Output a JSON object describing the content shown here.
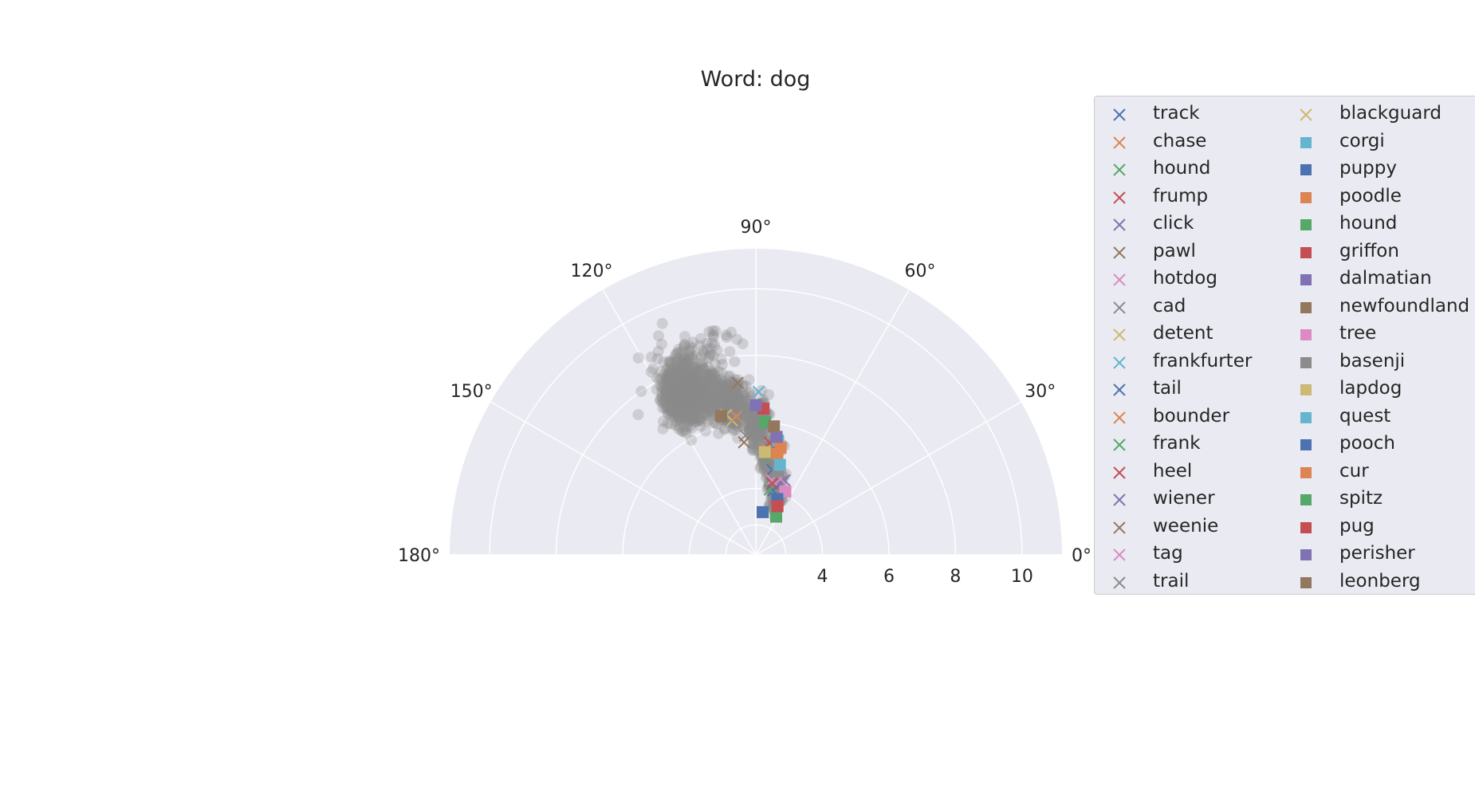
{
  "chart_data": {
    "type": "scatter",
    "projection": "polar-half",
    "title": "Word: dog",
    "theta_ticks": [
      "0°",
      "30°",
      "60°",
      "90°",
      "120°",
      "150°",
      "180°"
    ],
    "r_ticks": [
      "4",
      "6",
      "8",
      "10"
    ],
    "rlim": [
      2,
      11.2
    ],
    "thetalim_deg": [
      0,
      180
    ],
    "grid": true,
    "legend_position": "upper-right, outside plot",
    "background_cloud": {
      "color": "#8c8c8c",
      "alpha": 0.3,
      "description_points": [
        {
          "theta_deg": 108,
          "r": 8.9
        },
        {
          "theta_deg": 112,
          "r": 9.5
        },
        {
          "theta_deg": 95,
          "r": 8.5
        },
        {
          "theta_deg": 125,
          "r": 8.0
        },
        {
          "theta_deg": 130,
          "r": 7.5
        },
        {
          "theta_deg": 118,
          "r": 7.0
        },
        {
          "theta_deg": 105,
          "r": 7.2
        },
        {
          "theta_deg": 100,
          "r": 6.5
        },
        {
          "theta_deg": 92,
          "r": 6.0
        },
        {
          "theta_deg": 85,
          "r": 5.0
        },
        {
          "theta_deg": 80,
          "r": 4.3
        },
        {
          "theta_deg": 75,
          "r": 3.8
        }
      ]
    },
    "series": [
      {
        "name": "track",
        "marker": "x",
        "color": "#4c72b0",
        "theta_deg": 79,
        "r": 4.6
      },
      {
        "name": "chase",
        "marker": "x",
        "color": "#dd8452",
        "theta_deg": 84,
        "r": 5.2
      },
      {
        "name": "hound",
        "marker": "x",
        "color": "#55a868",
        "theta_deg": 82,
        "r": 5.0
      },
      {
        "name": "frump",
        "marker": "x",
        "color": "#c44e52",
        "theta_deg": 83,
        "r": 5.4
      },
      {
        "name": "click",
        "marker": "x",
        "color": "#8172b3",
        "theta_deg": 73,
        "r": 4.2
      },
      {
        "name": "pawl",
        "marker": "x",
        "color": "#937860",
        "theta_deg": 96,
        "r": 7.2
      },
      {
        "name": "hotdog",
        "marker": "x",
        "color": "#da8bc3",
        "theta_deg": 78,
        "r": 4.3
      },
      {
        "name": "cad",
        "marker": "x",
        "color": "#8c8c8c",
        "theta_deg": 95,
        "r": 5.6
      },
      {
        "name": "detent",
        "marker": "x",
        "color": "#ccb974",
        "theta_deg": 100,
        "r": 6.1
      },
      {
        "name": "frankfurter",
        "marker": "x",
        "color": "#64b5cd",
        "theta_deg": 89,
        "r": 6.9
      },
      {
        "name": "tail",
        "marker": "x",
        "color": "#4c72b0",
        "theta_deg": 75,
        "r": 4.0
      },
      {
        "name": "bounder",
        "marker": "x",
        "color": "#dd8452",
        "theta_deg": 98,
        "r": 6.2
      },
      {
        "name": "frank",
        "marker": "x",
        "color": "#55a868",
        "theta_deg": 78,
        "r": 4.0
      },
      {
        "name": "heel",
        "marker": "x",
        "color": "#c44e52",
        "theta_deg": 77,
        "r": 4.2
      },
      {
        "name": "wiener",
        "marker": "x",
        "color": "#8172b3",
        "theta_deg": 69,
        "r": 4.4
      },
      {
        "name": "weenie",
        "marker": "x",
        "color": "#937860",
        "theta_deg": 96,
        "r": 5.4
      },
      {
        "name": "tag",
        "marker": "x",
        "color": "#da8bc3",
        "theta_deg": 72,
        "r": 4.4
      },
      {
        "name": "trail",
        "marker": "x",
        "color": "#8c8c8c",
        "theta_deg": 80,
        "r": 5.0
      },
      {
        "name": "blackguard",
        "marker": "x",
        "color": "#ccb974",
        "theta_deg": 102,
        "r": 6.3
      },
      {
        "name": "corgi",
        "marker": "square",
        "color": "#64b5cd",
        "theta_deg": 79,
        "r": 5.5
      },
      {
        "name": "puppy",
        "marker": "square",
        "color": "#4c72b0",
        "theta_deg": 81,
        "r": 3.3
      },
      {
        "name": "poodle",
        "marker": "square",
        "color": "#dd8452",
        "theta_deg": 78,
        "r": 5.1
      },
      {
        "name": "hound",
        "marker": "square",
        "color": "#55a868",
        "theta_deg": 86,
        "r": 6.0
      },
      {
        "name": "griffon",
        "marker": "square",
        "color": "#c44e52",
        "theta_deg": 87,
        "r": 6.4
      },
      {
        "name": "dalmatian",
        "marker": "square",
        "color": "#8172b3",
        "theta_deg": 90,
        "r": 6.5
      },
      {
        "name": "newfoundland",
        "marker": "square",
        "color": "#937860",
        "theta_deg": 104,
        "r": 6.3
      },
      {
        "name": "tree",
        "marker": "square",
        "color": "#da8bc3",
        "theta_deg": 65,
        "r": 4.1
      },
      {
        "name": "basenji",
        "marker": "square",
        "color": "#8c8c8c",
        "theta_deg": 75,
        "r": 4.6
      },
      {
        "name": "lapdog",
        "marker": "square",
        "color": "#ccb974",
        "theta_deg": 85,
        "r": 5.1
      },
      {
        "name": "quest",
        "marker": "square",
        "color": "#64b5cd",
        "theta_deg": 75,
        "r": 4.8
      },
      {
        "name": "pooch",
        "marker": "square",
        "color": "#4c72b0",
        "theta_deg": 69,
        "r": 3.8
      },
      {
        "name": "cur",
        "marker": "square",
        "color": "#dd8452",
        "theta_deg": 77,
        "r": 5.3
      },
      {
        "name": "spitz",
        "marker": "square",
        "color": "#55a868",
        "theta_deg": 62,
        "r": 3.3
      },
      {
        "name": "pug",
        "marker": "square",
        "color": "#c44e52",
        "theta_deg": 66,
        "r": 3.6
      },
      {
        "name": "perisher",
        "marker": "square",
        "color": "#8172b3",
        "theta_deg": 80,
        "r": 5.6
      },
      {
        "name": "leonberg",
        "marker": "square",
        "color": "#937860",
        "theta_deg": 82,
        "r": 5.9
      }
    ]
  },
  "legend": {
    "col1": [
      "track",
      "chase",
      "hound",
      "frump",
      "click",
      "pawl",
      "hotdog",
      "cad",
      "detent",
      "frankfurter",
      "tail",
      "bounder",
      "frank",
      "heel",
      "wiener",
      "weenie",
      "tag",
      "trail"
    ],
    "col2": [
      "blackguard",
      "corgi",
      "puppy",
      "poodle",
      "hound",
      "griffon",
      "dalmatian",
      "newfoundland",
      "tree",
      "basenji",
      "lapdog",
      "quest",
      "pooch",
      "cur",
      "spitz",
      "pug",
      "perisher",
      "leonberg"
    ]
  }
}
